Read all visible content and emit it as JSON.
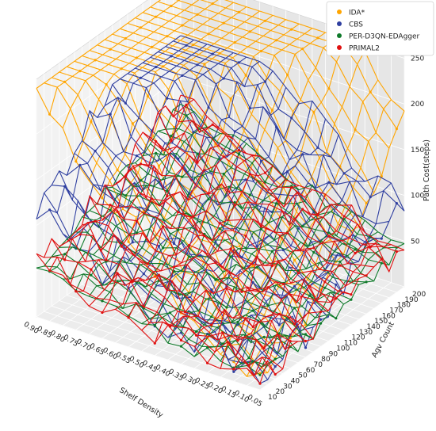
{
  "chart_data": {
    "type": "3d-wireframe-scatter",
    "xlabel": "Shelf Density",
    "ylabel": "Agv Count",
    "zlabel": "Path Cost(steps)",
    "x_ticks": [
      "0.05",
      "0.10",
      "0.15",
      "0.20",
      "0.25",
      "0.30",
      "0.35",
      "0.40",
      "0.45",
      "0.50",
      "0.55",
      "0.60",
      "0.65",
      "0.70",
      "0.75",
      "0.80",
      "0.85",
      "0.90"
    ],
    "y_ticks": [
      "10",
      "20",
      "30",
      "40",
      "50",
      "60",
      "70",
      "80",
      "90",
      "100",
      "110",
      "120",
      "130",
      "140",
      "150",
      "160",
      "170",
      "180",
      "190",
      "200"
    ],
    "z_ticks": [
      "50",
      "100",
      "150",
      "200",
      "250"
    ],
    "xlim": [
      0.05,
      0.9
    ],
    "ylim": [
      10,
      200
    ],
    "zlim": [
      0,
      260
    ],
    "grid": true,
    "legend_position": "top-right",
    "series": [
      {
        "name": "IDA*",
        "color": "#FFA500",
        "surface": {
          "low": 15,
          "high": 250,
          "threshold": 0.55,
          "noise": 20
        }
      },
      {
        "name": "CBS",
        "color": "#2F3FA0",
        "surface": {
          "low": 15,
          "high": 195,
          "threshold": 0.78,
          "noise": 35
        }
      },
      {
        "name": "PER-D3QN-EDAgger",
        "color": "#0F7A2A",
        "surface": {
          "low": 15,
          "high": 120,
          "threshold": 1.0,
          "noise": 18
        }
      },
      {
        "name": "PRIMAL2",
        "color": "#E01010",
        "surface": {
          "low": 15,
          "high": 130,
          "threshold": 1.0,
          "noise": 30
        }
      }
    ]
  }
}
